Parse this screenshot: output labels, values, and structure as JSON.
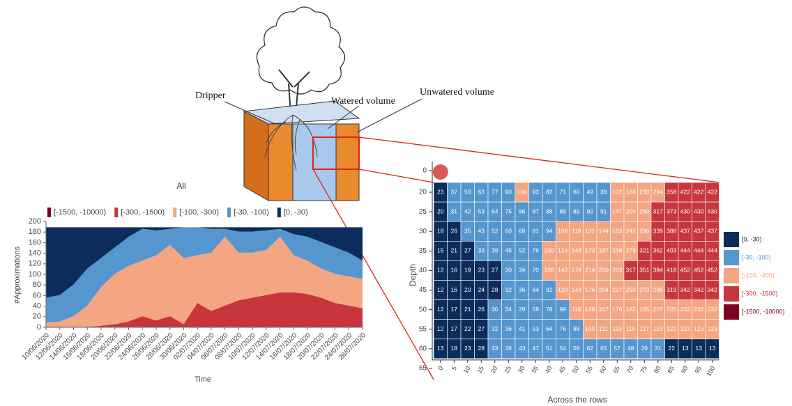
{
  "diagram": {
    "labels": [
      "Dripper",
      "Watered volume",
      "Unwatered volume"
    ]
  },
  "chart_data": [
    {
      "type": "area",
      "title": "All",
      "xlabel": "Time",
      "ylabel": "#Approximations",
      "x": [
        "10/06/2020",
        "12/06/2020",
        "14/06/2020",
        "16/06/2020",
        "18/06/2020",
        "20/06/2020",
        "22/06/2020",
        "24/06/2020",
        "26/06/2020",
        "28/06/2020",
        "30/06/2020",
        "02/07/2020",
        "04/07/2020",
        "06/07/2020",
        "08/07/2020",
        "10/07/2020",
        "12/07/2020",
        "14/07/2020",
        "16/07/2020",
        "18/07/2020",
        "20/07/2020",
        "22/07/2020",
        "24/07/2020",
        "26/07/2020"
      ],
      "series": [
        {
          "name": "[-1500, -10000)",
          "color": "#7f0020",
          "values": [
            1,
            1,
            1,
            1,
            1,
            1,
            1,
            1,
            1,
            1,
            1,
            1,
            1,
            1,
            1,
            1,
            1,
            1,
            1,
            1,
            1,
            1,
            1,
            1
          ]
        },
        {
          "name": "[-300, -1500)",
          "color": "#c6363c",
          "values": [
            0,
            0,
            0,
            0,
            2,
            5,
            10,
            20,
            12,
            20,
            5,
            45,
            30,
            40,
            50,
            55,
            60,
            65,
            65,
            62,
            55,
            45,
            40,
            35
          ]
        },
        {
          "name": "[-100, -300)",
          "color": "#f4a582",
          "values": [
            8,
            10,
            20,
            40,
            73,
            95,
            105,
            105,
            123,
            135,
            125,
            90,
            110,
            130,
            90,
            85,
            85,
            105,
            70,
            63,
            55,
            55,
            55,
            55
          ]
        },
        {
          "name": "[-30, -100)",
          "color": "#5596cf",
          "values": [
            47,
            50,
            60,
            70,
            55,
            50,
            55,
            60,
            47,
            30,
            58,
            53,
            45,
            15,
            40,
            40,
            37,
            15,
            40,
            45,
            50,
            50,
            45,
            35
          ]
        },
        {
          "name": "[0, -30)",
          "color": "#0c2c5c",
          "values": [
            133,
            128,
            108,
            78,
            58,
            38,
            18,
            3,
            6,
            3,
            0,
            0,
            3,
            3,
            8,
            8,
            6,
            3,
            13,
            18,
            28,
            38,
            48,
            63
          ]
        }
      ],
      "ylim": [
        0,
        200
      ],
      "yticks": [
        0,
        20,
        40,
        60,
        80,
        100,
        120,
        140,
        160,
        180,
        200
      ]
    },
    {
      "type": "heatmap",
      "xlabel": "Across the rows",
      "ylabel": "Depth",
      "xticks": [
        0,
        5,
        10,
        15,
        20,
        25,
        30,
        35,
        40,
        45,
        50,
        55,
        60,
        65,
        70,
        75,
        80,
        85,
        90,
        95,
        100
      ],
      "yticks": [
        0,
        20,
        25,
        30,
        35,
        40,
        45,
        50,
        55,
        60,
        65
      ],
      "values": [
        [
          23,
          37,
          50,
          63,
          77,
          90,
          104,
          93,
          82,
          71,
          60,
          49,
          38,
          102,
          166,
          230,
          294,
          358,
          422,
          422,
          422
        ],
        [
          20,
          31,
          42,
          53,
          64,
          75,
          86,
          87,
          88,
          89,
          89,
          90,
          91,
          147,
          204,
          260,
          317,
          373,
          430,
          430,
          430
        ],
        [
          18,
          26,
          35,
          43,
          52,
          60,
          68,
          81,
          94,
          106,
          119,
          131,
          144,
          183,
          242,
          290,
          339,
          388,
          437,
          437,
          437
        ],
        [
          15,
          21,
          27,
          33,
          39,
          45,
          52,
          76,
          100,
          124,
          148,
          173,
          197,
          238,
          279,
          321,
          362,
          403,
          444,
          444,
          444
        ],
        [
          12,
          16,
          19,
          23,
          27,
          30,
          34,
          70,
          106,
          142,
          178,
          214,
          250,
          283,
          317,
          351,
          384,
          418,
          452,
          452,
          452
        ],
        [
          12,
          16,
          20,
          24,
          28,
          32,
          36,
          64,
          92,
          120,
          148,
          176,
          204,
          227,
          250,
          273,
          296,
          319,
          342,
          342,
          342
        ],
        [
          12,
          17,
          21,
          26,
          30,
          34,
          39,
          59,
          78,
          98,
          118,
          138,
          157,
          170,
          182,
          195,
          207,
          220,
          232,
          232,
          232
        ],
        [
          12,
          17,
          22,
          27,
          32,
          36,
          41,
          53,
          64,
          76,
          88,
          100,
          111,
          113,
          115,
          117,
          119,
          121,
          123,
          123,
          123
        ],
        [
          13,
          18,
          23,
          28,
          33,
          38,
          43,
          47,
          51,
          54,
          58,
          62,
          65,
          57,
          48,
          39,
          31,
          22,
          13,
          13,
          13
        ]
      ],
      "legend": [
        {
          "label": "[0, -30)",
          "color": "#0c2c5c"
        },
        {
          "label": "[-30, -100)",
          "color": "#5596cf"
        },
        {
          "label": "[-100, -300)",
          "color": "#f4a582"
        },
        {
          "label": "[-300, -1500)",
          "color": "#c6363c"
        },
        {
          "label": "[-1500, -10000)",
          "color": "#7f0020"
        }
      ]
    }
  ]
}
